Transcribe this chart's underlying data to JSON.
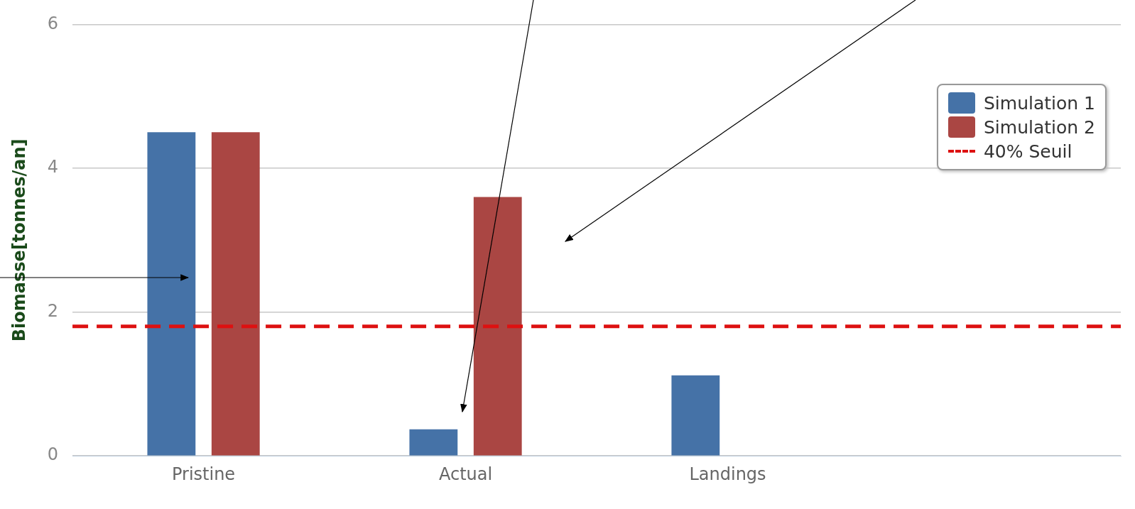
{
  "chart_data": {
    "type": "bar",
    "ylabel": "Biomasse[tonnes/an]",
    "categories": [
      "Pristine",
      "Actual",
      "Landings",
      null
    ],
    "series": [
      {
        "name": "Simulation 1",
        "color": "#4572a7",
        "values": [
          4.5,
          0.37,
          1.12,
          null
        ]
      },
      {
        "name": "Simulation 2",
        "color": "#aa4643",
        "values": [
          4.5,
          3.6,
          null,
          null
        ]
      }
    ],
    "ylim": [
      0,
      6
    ],
    "yticks": [
      0,
      2,
      4,
      6
    ],
    "grid": "y",
    "legend": "top right",
    "ref_lines": [
      {
        "axis": "y",
        "value": 1.8,
        "label": "40% Seuil",
        "color": "#dd1111",
        "line_style": "dashed"
      }
    ]
  }
}
